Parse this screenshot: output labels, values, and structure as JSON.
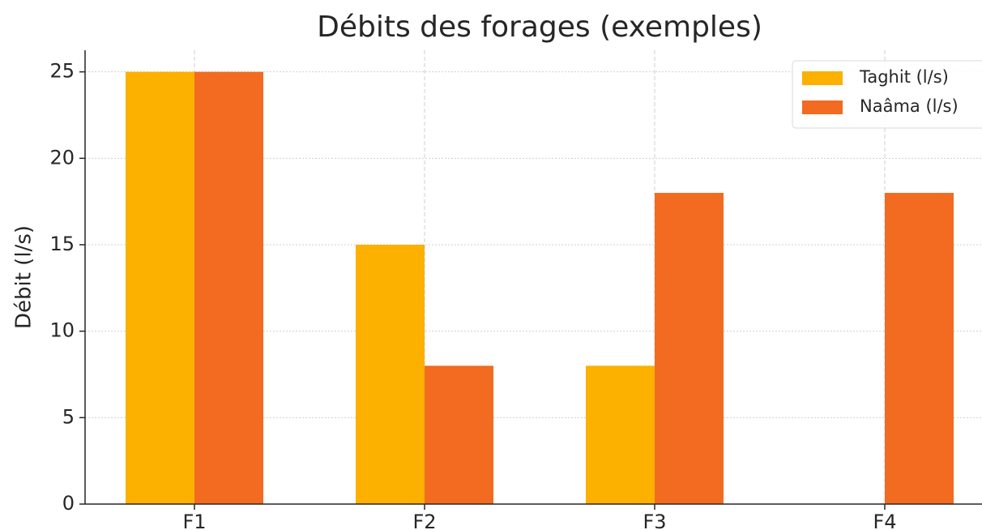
{
  "chart_data": {
    "type": "bar",
    "title": "Débits des forages (exemples)",
    "ylabel": "Débit (l/s)",
    "categories": [
      "F1",
      "F2",
      "F3",
      "F4"
    ],
    "series": [
      {
        "name": "Taghit (l/s)",
        "color": "#fcb000",
        "values": [
          25,
          15,
          8,
          0
        ]
      },
      {
        "name": "Naâma (l/s)",
        "color": "#f26b21",
        "values": [
          25,
          8,
          18,
          18
        ]
      }
    ],
    "ylim": [
      0,
      26.25
    ],
    "yticks": [
      0,
      5,
      10,
      15,
      20,
      25
    ],
    "grid": true,
    "legend": "upper right"
  }
}
